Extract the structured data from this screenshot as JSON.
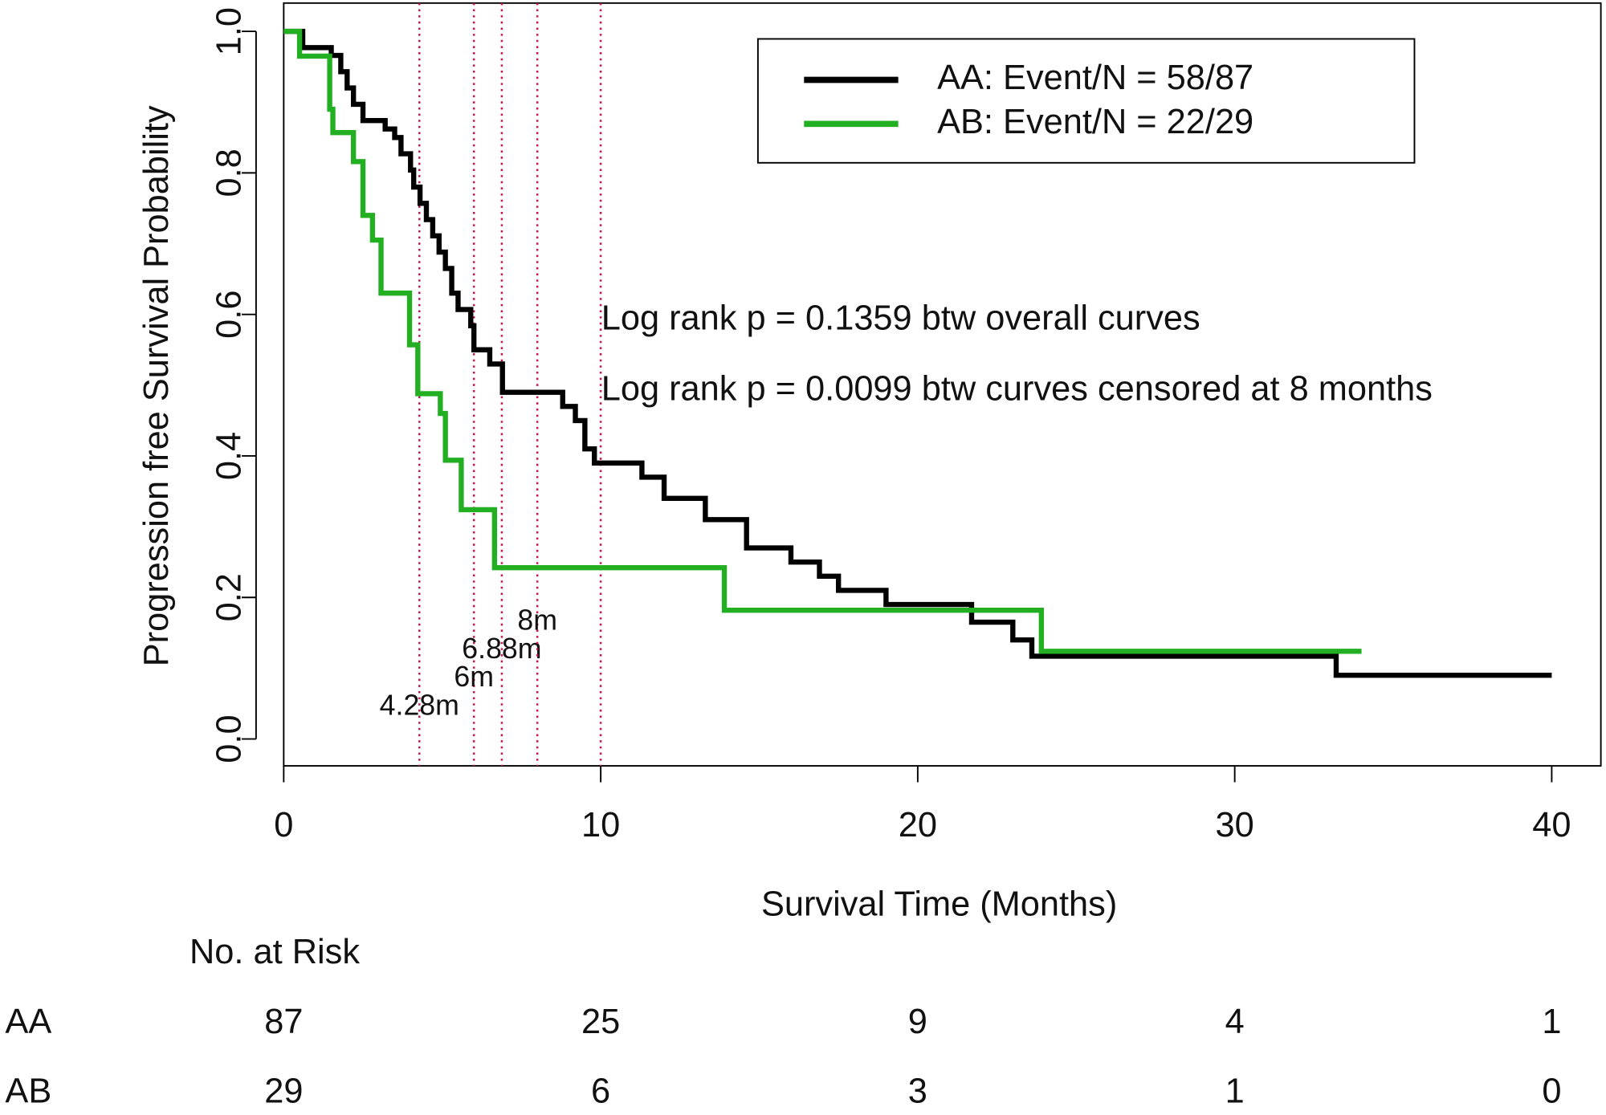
{
  "chart_data": {
    "type": "step",
    "x_label": "Survival Time (Months)",
    "y_label": "Progression free Survival Probability",
    "xlim": [
      0,
      41.55
    ],
    "ylim": [
      -0.038,
      1.04
    ],
    "xticks": [
      0,
      10,
      20,
      30,
      40
    ],
    "yticks": [
      {
        "value": 0,
        "label": "0.0"
      },
      0.2,
      0.4,
      0.6,
      0.8,
      {
        "value": 1,
        "label": "1.0"
      }
    ],
    "series": [
      {
        "name": "AA: Event/N = 58/87",
        "color": "#000000",
        "x": [
          0,
          0.6,
          1.5,
          1.8,
          2.0,
          2.2,
          2.5,
          3.2,
          3.5,
          3.7,
          4.0,
          4.1,
          4.3,
          4.5,
          4.7,
          4.9,
          5.1,
          5.3,
          5.5,
          5.9,
          6.0,
          6.5,
          6.9,
          8.8,
          9.2,
          9.5,
          9.8,
          11.3,
          12.0,
          13.3,
          14.6,
          16.0,
          16.9,
          17.5,
          19.0,
          21.7,
          23.0,
          23.6,
          33.2,
          40.0
        ],
        "values": [
          1.0,
          0.977,
          0.966,
          0.943,
          0.92,
          0.897,
          0.874,
          0.862,
          0.85,
          0.827,
          0.804,
          0.78,
          0.757,
          0.734,
          0.711,
          0.688,
          0.665,
          0.63,
          0.607,
          0.584,
          0.55,
          0.53,
          0.49,
          0.47,
          0.45,
          0.41,
          0.39,
          0.37,
          0.34,
          0.31,
          0.27,
          0.25,
          0.23,
          0.21,
          0.19,
          0.165,
          0.14,
          0.117,
          0.09,
          0.09
        ]
      },
      {
        "name": "AB: Event/N = 22/29",
        "color": "#22b022",
        "x": [
          0,
          0.5,
          1.45,
          1.55,
          2.2,
          2.5,
          2.8,
          3.07,
          3.97,
          4.23,
          4.94,
          5.1,
          5.6,
          6.65,
          13.9,
          23.9,
          34.0
        ],
        "values": [
          1.0,
          0.965,
          0.89,
          0.857,
          0.816,
          0.74,
          0.705,
          0.63,
          0.557,
          0.488,
          0.46,
          0.394,
          0.324,
          0.242,
          0.182,
          0.124,
          0.124
        ]
      }
    ],
    "reference_lines": {
      "color": "#c2185b",
      "x": [
        4.28,
        6,
        6.88,
        8,
        10
      ],
      "labels": [
        "4.28m",
        "6m",
        "6.88m",
        "8m",
        null
      ]
    },
    "annotations": [
      "Log rank p = 0.1359 btw overall curves",
      "Log rank p = 0.0099 btw curves censored at 8 months"
    ],
    "risk_table": {
      "title": "No. at Risk",
      "rows": [
        {
          "name": "AA",
          "values": [
            87,
            25,
            9,
            4,
            1
          ]
        },
        {
          "name": "AB",
          "values": [
            29,
            6,
            3,
            1,
            0
          ]
        }
      ]
    }
  }
}
